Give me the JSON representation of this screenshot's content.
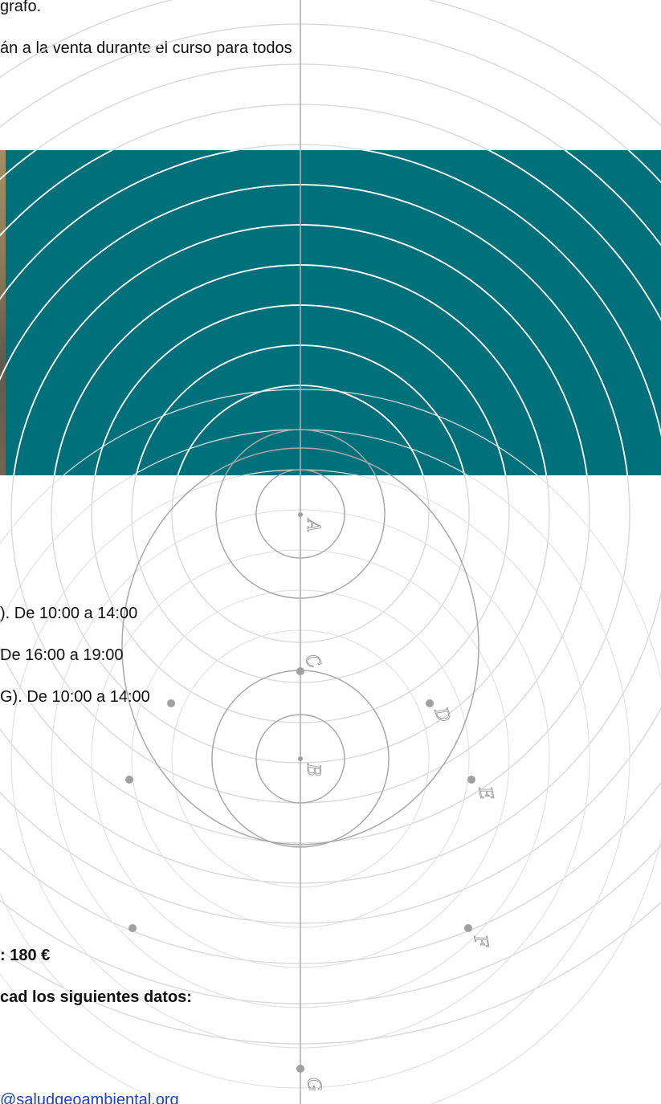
{
  "intro": {
    "line1": "grafo.",
    "line2": "án a la venta durante el curso para todos"
  },
  "schedule": [
    "). De 10:00 a 14:00",
    "De 16:00 a 19:00",
    "G). De 10:00 a 14:00"
  ],
  "price": ": 180 €",
  "instructions": "cad los siguientes datos:",
  "email_link": "@saludgeoambiental.org",
  "diagram": {
    "labels": [
      "A",
      "B",
      "C",
      "D",
      "E",
      "F",
      "G"
    ],
    "colors": {
      "dark": "#9b9b9b",
      "light": "#d4d4d4",
      "white_rings": "#ffffff"
    }
  },
  "banner": {
    "color": "#00707a"
  }
}
